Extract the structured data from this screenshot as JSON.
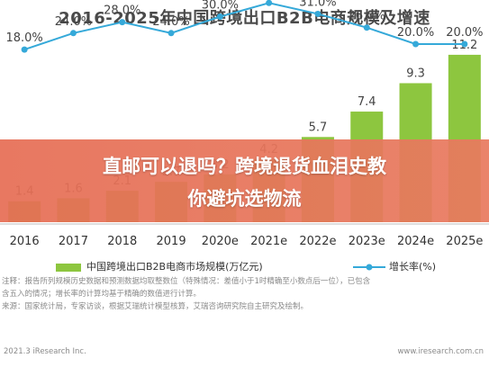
{
  "chart_data": {
    "type": "bar",
    "title": "2016-2025年中国跨境出口B2B电商规模及增速",
    "categories": [
      "2016",
      "2017",
      "2018",
      "2019",
      "2020e",
      "2021e",
      "2022e",
      "2023e",
      "2024e",
      "2025e"
    ],
    "series": [
      {
        "name": "中国跨境出口B2B电商市场规模(万亿元)",
        "type": "bar",
        "color": "#8dc63f",
        "values": [
          1.4,
          1.6,
          2.1,
          2.7,
          3.2,
          4.2,
          5.7,
          7.4,
          9.3,
          11.2
        ],
        "labels": [
          "1.4",
          "1.6",
          "2.1",
          "2.7",
          "3.2",
          "4.2",
          "5.7",
          "7.4",
          "9.3",
          "11.2"
        ]
      },
      {
        "name": "增长率(%)",
        "type": "line",
        "color": "#35a9d9",
        "values": [
          18.0,
          24.0,
          28.0,
          24.0,
          30.0,
          35.0,
          31.0,
          26.0,
          20.0,
          20.0
        ],
        "labels": [
          "18.0%",
          "24.0%",
          "28.0%",
          "24.0%",
          "30.0%",
          "35.0%",
          "31.0%",
          "26.0%",
          "20.0%",
          "20.0%"
        ]
      }
    ],
    "bar_ylim": [
      0,
      13
    ],
    "line_ylim": [
      0,
      40
    ],
    "grid": false,
    "legend_position": "bottom"
  },
  "overlay": {
    "line1": "直邮可以退吗？跨境退货血泪史教",
    "line2": "你避坑选物流"
  },
  "notes": [
    "注释：报告所列规模历史数据和预测数据均取整数位（特殊情况：差值小于1时精确至小数点后一位），已包含",
    "含五入的情况；增长率的计算均基于精确的数值进行计算。",
    "来源：国家统计局，专家访谈，根据艾瑞统计模型核算，艾瑞咨询研究院自主研究及绘制。"
  ],
  "footer": {
    "left": "2021.3 iResearch Inc.",
    "right": "www.iresearch.com.cn"
  }
}
